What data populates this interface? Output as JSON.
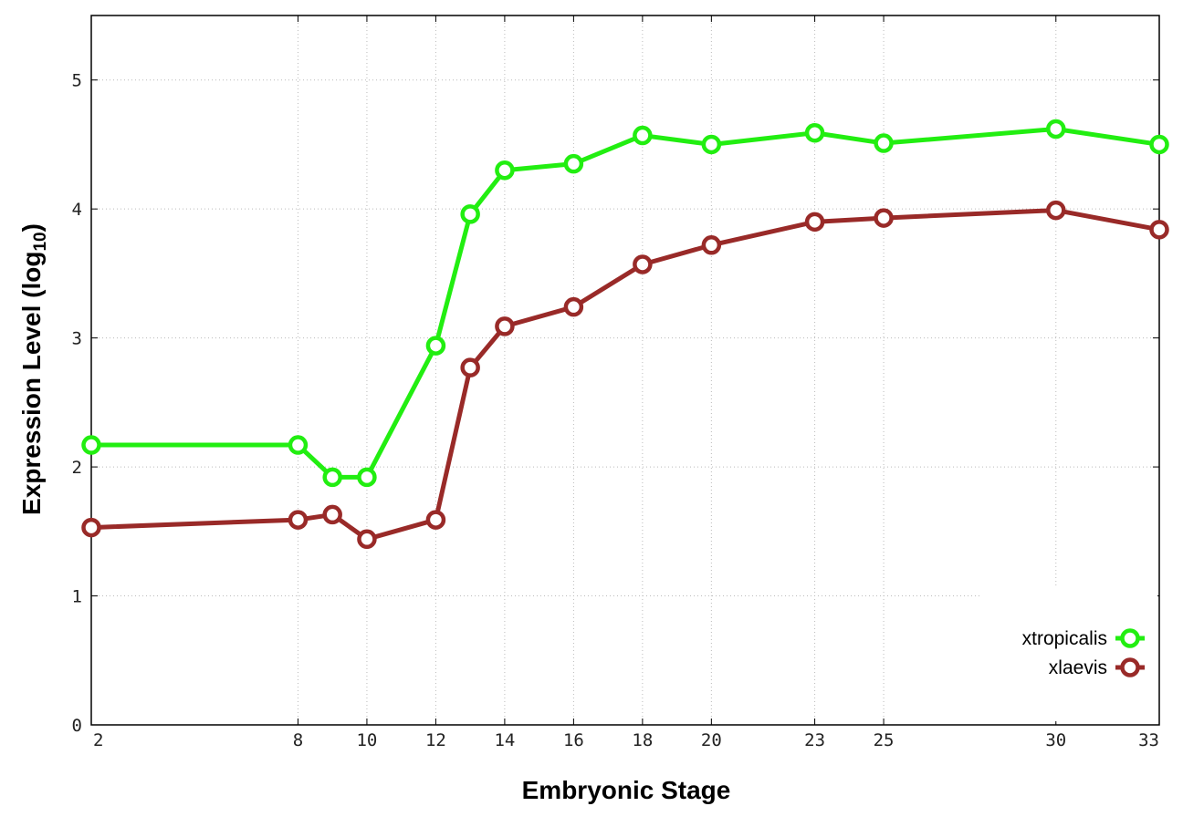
{
  "chart_data": {
    "type": "line",
    "xlabel": "Embryonic Stage",
    "ylabel_main": "Expression Level (log",
    "ylabel_sub": "10",
    "ylabel_close": ")",
    "x": [
      2,
      8,
      9,
      10,
      12,
      13,
      14,
      16,
      18,
      20,
      23,
      25,
      30,
      33
    ],
    "x_ticks": [
      2,
      8,
      10,
      12,
      14,
      16,
      18,
      20,
      23,
      25,
      30,
      33
    ],
    "x_tick_labels": [
      "2",
      "8",
      "10",
      "12",
      "14",
      "16",
      "18",
      "20",
      "23",
      "25",
      "30",
      "33"
    ],
    "y_ticks": [
      0,
      1,
      2,
      3,
      4,
      5
    ],
    "y_tick_labels": [
      "0",
      "1",
      "2",
      "3",
      "4",
      "5"
    ],
    "xlim": [
      2,
      33
    ],
    "ylim": [
      0,
      5.5
    ],
    "grid": true,
    "legend_position": "bottom-right",
    "series": [
      {
        "name": "xtropicalis",
        "color": "#22ee11",
        "values": [
          2.17,
          2.17,
          1.92,
          1.92,
          2.94,
          3.96,
          4.3,
          4.35,
          4.57,
          4.5,
          4.59,
          4.51,
          4.62,
          4.5
        ]
      },
      {
        "name": "xlaevis",
        "color": "#992a28",
        "values": [
          1.53,
          1.59,
          1.63,
          1.44,
          1.59,
          2.77,
          3.09,
          3.24,
          3.57,
          3.72,
          3.9,
          3.93,
          3.99,
          3.84
        ]
      }
    ]
  }
}
